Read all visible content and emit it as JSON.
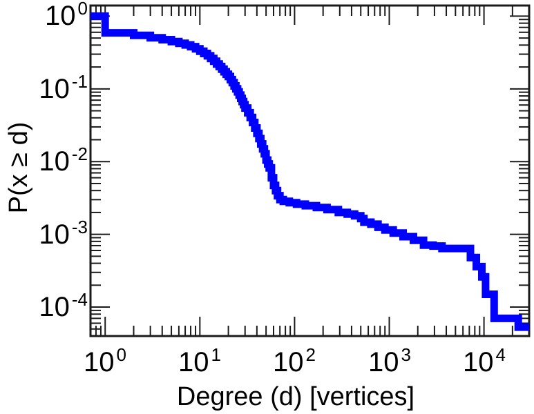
{
  "chart_data": {
    "type": "line",
    "style": "step-ccdf",
    "xlabel": "Degree (d) [vertices]",
    "ylabel": "P(x ≥ d)",
    "x_scale": "log",
    "y_scale": "log",
    "xlim": [
      0.7,
      30000
    ],
    "ylim": [
      4e-05,
      1.4
    ],
    "grid": false,
    "legend": "none",
    "frame_color": "#1a1a1a",
    "text_color": "#000000",
    "x_ticks": [
      {
        "base": "10",
        "exp": "0",
        "value": 1
      },
      {
        "base": "10",
        "exp": "1",
        "value": 10
      },
      {
        "base": "10",
        "exp": "2",
        "value": 100
      },
      {
        "base": "10",
        "exp": "3",
        "value": 1000
      },
      {
        "base": "10",
        "exp": "4",
        "value": 10000
      }
    ],
    "y_ticks": [
      {
        "base": "10",
        "exp": "0",
        "value": 1
      },
      {
        "base": "10",
        "exp": "-1",
        "value": 0.1
      },
      {
        "base": "10",
        "exp": "-2",
        "value": 0.01
      },
      {
        "base": "10",
        "exp": "-3",
        "value": 0.001
      },
      {
        "base": "10",
        "exp": "-4",
        "value": 0.0001
      }
    ],
    "minor_ticks": "log-decades-2-through-9-mirrored-all-sides",
    "series": [
      {
        "name": "degree-ccdf",
        "color": "#0000ff",
        "line_width": 11,
        "points": [
          [
            0.7,
            1.0
          ],
          [
            1,
            0.59
          ],
          [
            2,
            0.545
          ],
          [
            3,
            0.505
          ],
          [
            4,
            0.475
          ],
          [
            5,
            0.448
          ],
          [
            6,
            0.424
          ],
          [
            7,
            0.402
          ],
          [
            8,
            0.381
          ],
          [
            9,
            0.355
          ],
          [
            10,
            0.33
          ],
          [
            11,
            0.307
          ],
          [
            12,
            0.285
          ],
          [
            13,
            0.262
          ],
          [
            14,
            0.24
          ],
          [
            15,
            0.22
          ],
          [
            16,
            0.203
          ],
          [
            17,
            0.187
          ],
          [
            18,
            0.172
          ],
          [
            19,
            0.159
          ],
          [
            20,
            0.148
          ],
          [
            21,
            0.134
          ],
          [
            22,
            0.122
          ],
          [
            23,
            0.11
          ],
          [
            24,
            0.1
          ],
          [
            25,
            0.091
          ],
          [
            26,
            0.082
          ],
          [
            27,
            0.074
          ],
          [
            28,
            0.067
          ],
          [
            29,
            0.0605
          ],
          [
            30,
            0.0545
          ],
          [
            32,
            0.047
          ],
          [
            34,
            0.0405
          ],
          [
            36,
            0.0345
          ],
          [
            38,
            0.029
          ],
          [
            40,
            0.0245
          ],
          [
            42,
            0.0207
          ],
          [
            44,
            0.0175
          ],
          [
            46,
            0.015
          ],
          [
            48,
            0.0128
          ],
          [
            50,
            0.0105
          ],
          [
            52,
            0.0093
          ],
          [
            54,
            0.0082
          ],
          [
            57,
            0.006
          ],
          [
            60,
            0.0047
          ],
          [
            63,
            0.004
          ],
          [
            66,
            0.0034
          ],
          [
            70,
            0.003
          ],
          [
            76,
            0.00285
          ],
          [
            88,
            0.00272
          ],
          [
            105,
            0.0026
          ],
          [
            130,
            0.00248
          ],
          [
            170,
            0.00234
          ],
          [
            220,
            0.00219
          ],
          [
            290,
            0.002
          ],
          [
            360,
            0.0019
          ],
          [
            430,
            0.0018
          ],
          [
            500,
            0.00165
          ],
          [
            540,
            0.00147
          ],
          [
            640,
            0.00138
          ],
          [
            760,
            0.00125
          ],
          [
            900,
            0.00115
          ],
          [
            1100,
            0.00104
          ],
          [
            1400,
            0.00093
          ],
          [
            1800,
            0.00083
          ],
          [
            2300,
            0.00071
          ],
          [
            2900,
            0.00069
          ],
          [
            3600,
            0.00064
          ],
          [
            7200,
            0.00048
          ],
          [
            8300,
            0.00036
          ],
          [
            9500,
            0.00026
          ],
          [
            10400,
            0.00015
          ],
          [
            12800,
            7e-05
          ],
          [
            23000,
            5.3e-05
          ]
        ]
      }
    ]
  }
}
